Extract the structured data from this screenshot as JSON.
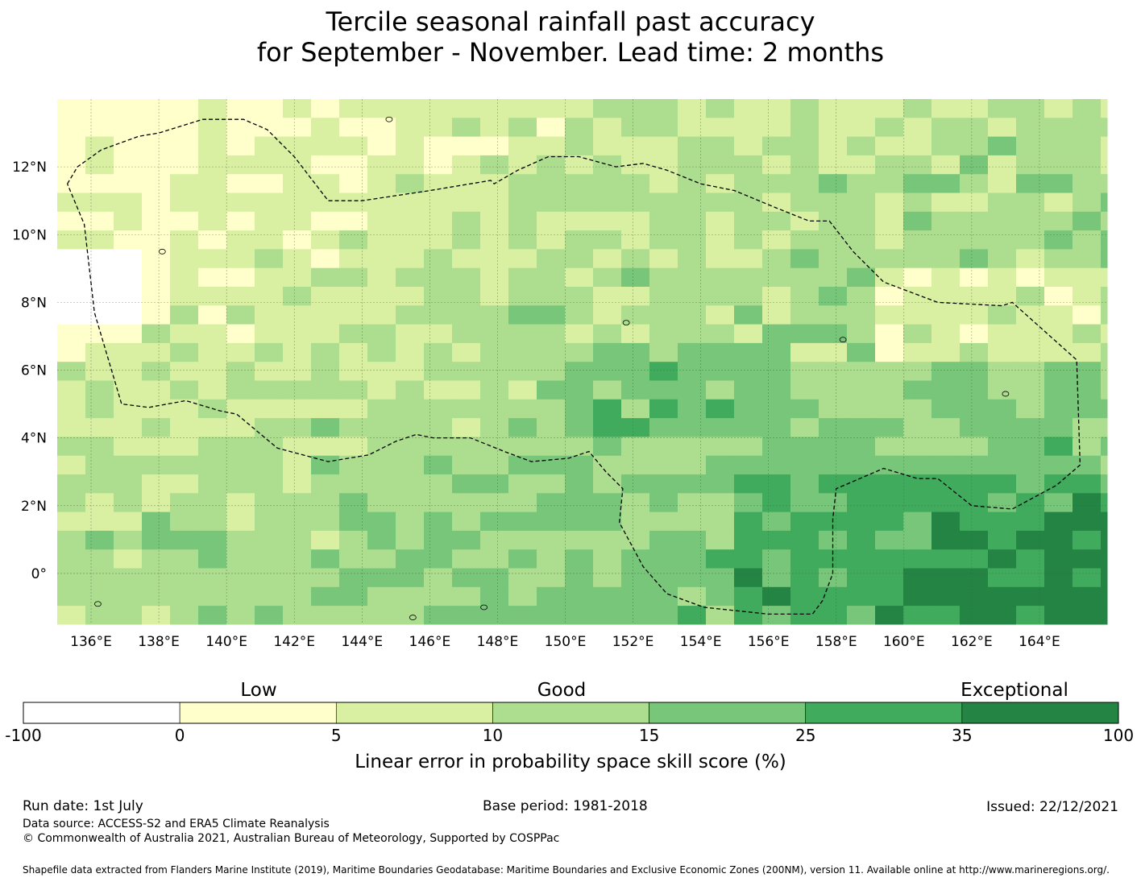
{
  "title": {
    "line1": "Tercile seasonal rainfall past accuracy",
    "line2": "for September - November. Lead time: 2 months"
  },
  "map": {
    "lon_range": [
      135,
      166
    ],
    "lat_range": [
      -1.5,
      14
    ],
    "lon_ticks": [
      "136°E",
      "138°E",
      "140°E",
      "142°E",
      "144°E",
      "146°E",
      "148°E",
      "150°E",
      "152°E",
      "154°E",
      "156°E",
      "158°E",
      "160°E",
      "162°E",
      "164°E"
    ],
    "lat_ticks": [
      "12°N",
      "10°N",
      "8°N",
      "6°N",
      "4°N",
      "2°N",
      "0°"
    ],
    "grid": true,
    "eez_boundaries": [
      "Palau / FSM (west)",
      "Federated States of Micronesia",
      "Marshall Islands / Nauru (east)"
    ]
  },
  "colorbar": {
    "title": "Linear error in probability space skill score (%)",
    "categories": [
      "Low",
      "Good",
      "Exceptional"
    ],
    "bounds": [
      "-100",
      "0",
      "5",
      "10",
      "15",
      "25",
      "35",
      "100"
    ],
    "colors": [
      "#ffffff",
      "#ffffcc",
      "#d9f0a3",
      "#addd8e",
      "#78c679",
      "#41ab5d",
      "#238443"
    ]
  },
  "footer": {
    "run_date": "Run date: 1st July",
    "base_period": "Base period: 1981-2018",
    "issued": "Issued: 22/12/2021",
    "data_source": "Data source: ACCESS-S2 and ERA5 Climate Reanalysis",
    "copyright": "© Commonwealth of Australia 2021, Australian Bureau of Meteorology, Supported by COSPPac",
    "shapefile": "Shapefile data extracted from Flanders Marine Institute (2019), Maritime Boundaries Geodatabase: Maritime Boundaries and Exclusive Economic Zones (200NM), version 11. Available online at http://www.marineregions.org/."
  }
}
